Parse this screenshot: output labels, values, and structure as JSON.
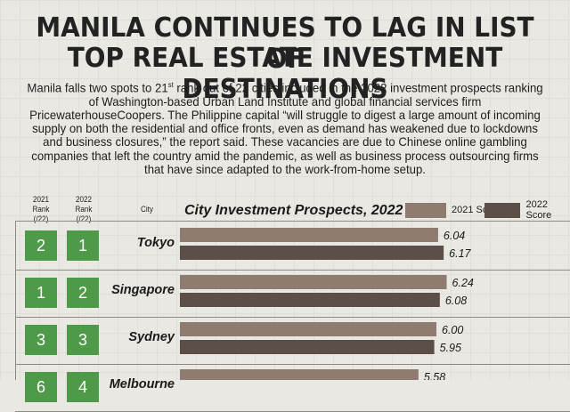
{
  "title_line1": "MANILA CONTINUES TO LAG IN LIST OF",
  "title_line2": "TOP REAL ESTATE INVESTMENT DESTINATIONS",
  "intro": {
    "part1": "Manila falls two spots to 21",
    "sup": "st",
    "part2": " rank out of 22 cities included in the 2022 investment prospects ranking of Washington-based Urban Land Institute and global financial services firm PricewaterhouseCoopers. The Philippine capital “will struggle to digest a large amount of incoming supply on both the residential and office fronts, even as demand has weakened due to lockdowns and business closures,” the report said. These vacancies are due to Chinese online gambling companies that left the country amid the pandemic, as well as business process outsourcing firms that have since adapted to the work-from-home setup."
  },
  "headers": {
    "rank2021_a": "2021",
    "rank2021_b": "Rank (/22)",
    "rank2022_a": "2022",
    "rank2022_b": "Rank (/22)",
    "city": "City"
  },
  "colors": {
    "score2021": "#8f7b70",
    "score2022": "#5b4f47",
    "rank_box": "#4f9a49"
  },
  "chart_data": {
    "type": "bar",
    "orientation": "horizontal",
    "title": "City Investment Prospects, 2022",
    "categories": [
      "Tokyo",
      "Singapore",
      "Sydney",
      "Melbourne"
    ],
    "rank_2021": [
      "2",
      "1",
      "3",
      "6"
    ],
    "rank_2022": [
      "1",
      "2",
      "3",
      "4"
    ],
    "series": [
      {
        "name": "2021 Score",
        "values": [
          6.04,
          6.24,
          6.0,
          5.58
        ]
      },
      {
        "name": "2022 Score",
        "values": [
          6.17,
          6.08,
          5.95,
          null
        ]
      }
    ],
    "value_labels": [
      [
        "6.04",
        "6.24",
        "6.00",
        "5.58"
      ],
      [
        "6.17",
        "6.08",
        "5.95",
        ""
      ]
    ],
    "legend_position": "top-right"
  }
}
